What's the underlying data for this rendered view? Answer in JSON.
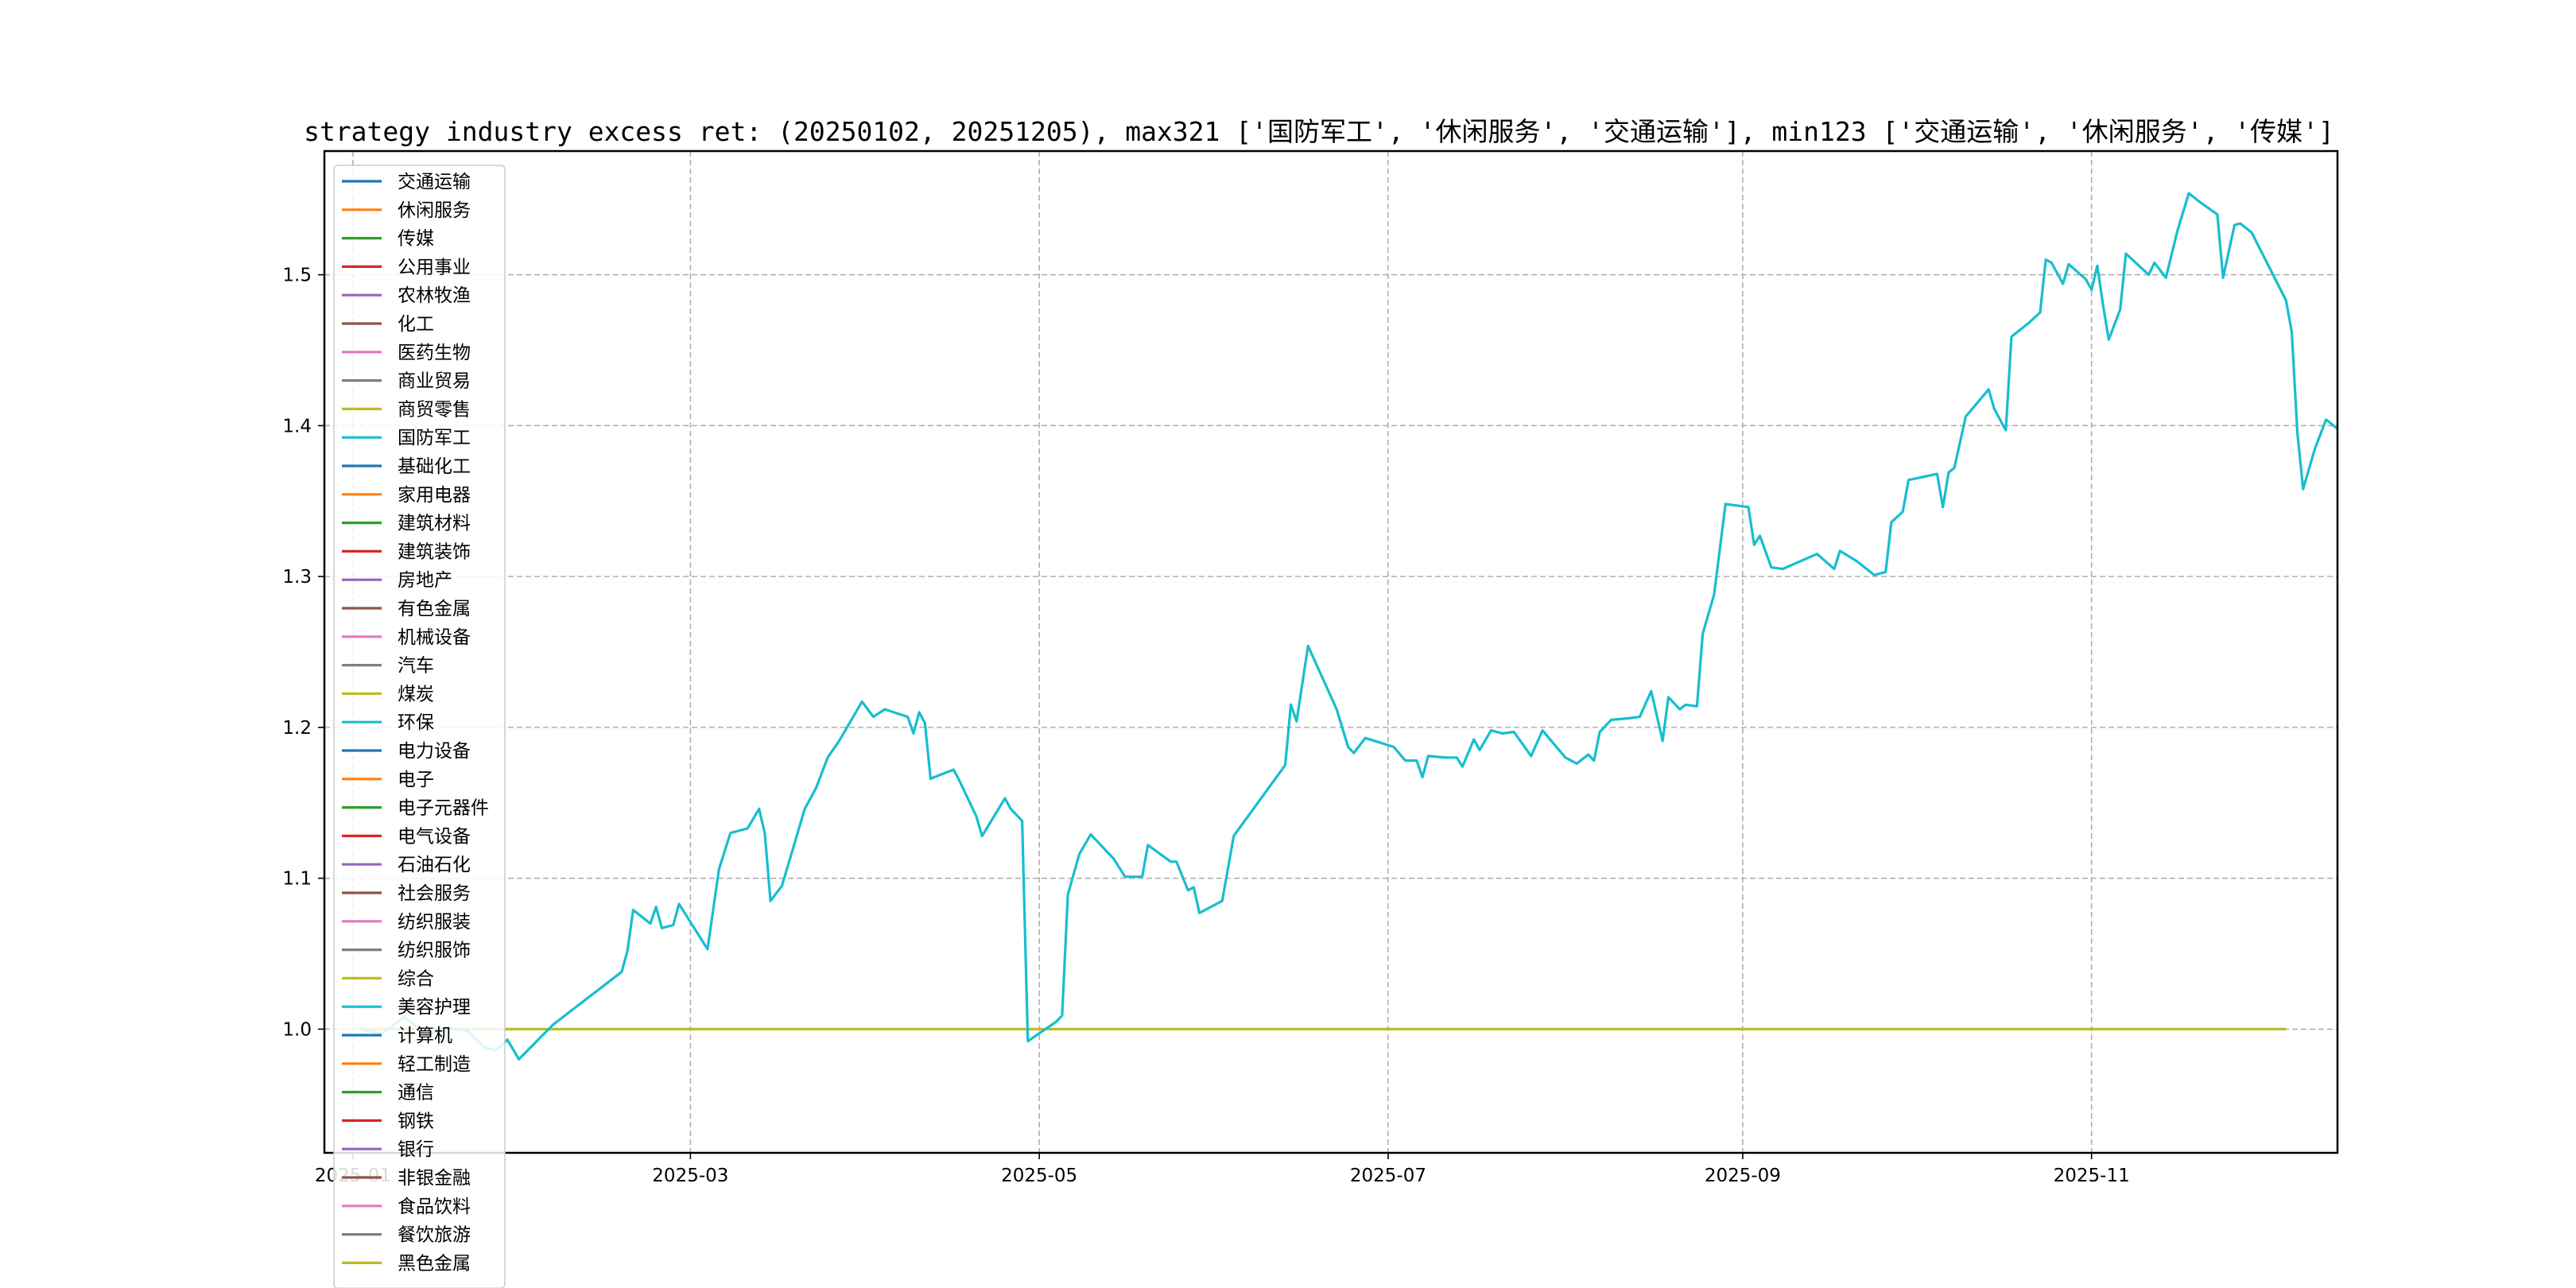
{
  "chart_data": {
    "type": "line",
    "title": "strategy industry excess ret: (20250102, 20251205), max321 ['国防军工', '休闲服务', '交通运输'], min123 ['交通运输', '休闲服务', '传媒']",
    "xlabel": "",
    "ylabel": "",
    "ylim": [
      0.918,
      1.582
    ],
    "xlim": [
      "2024-12-27",
      "2025-12-14"
    ],
    "grid": true,
    "grid_style": "dashed",
    "legend_position": "left",
    "x_ticks": [
      "2025-01",
      "2025-03",
      "2025-05",
      "2025-07",
      "2025-09",
      "2025-11"
    ],
    "y_ticks": [
      1.0,
      1.1,
      1.2,
      1.3,
      1.4,
      1.5
    ],
    "legend_entries": [
      {
        "name": "交通运输",
        "color": "#1f77b4"
      },
      {
        "name": "休闲服务",
        "color": "#ff7f0e"
      },
      {
        "name": "传媒",
        "color": "#2ca02c"
      },
      {
        "name": "公用事业",
        "color": "#d62728"
      },
      {
        "name": "农林牧渔",
        "color": "#9467bd"
      },
      {
        "name": "化工",
        "color": "#8c564b"
      },
      {
        "name": "医药生物",
        "color": "#e377c2"
      },
      {
        "name": "商业贸易",
        "color": "#7f7f7f"
      },
      {
        "name": "商贸零售",
        "color": "#bcbd22"
      },
      {
        "name": "国防军工",
        "color": "#17becf"
      },
      {
        "name": "基础化工",
        "color": "#1f77b4"
      },
      {
        "name": "家用电器",
        "color": "#ff7f0e"
      },
      {
        "name": "建筑材料",
        "color": "#2ca02c"
      },
      {
        "name": "建筑装饰",
        "color": "#d62728"
      },
      {
        "name": "房地产",
        "color": "#9467bd"
      },
      {
        "name": "有色金属",
        "color": "#8c564b"
      },
      {
        "name": "机械设备",
        "color": "#e377c2"
      },
      {
        "name": "汽车",
        "color": "#7f7f7f"
      },
      {
        "name": "煤炭",
        "color": "#bcbd22"
      },
      {
        "name": "环保",
        "color": "#17becf"
      },
      {
        "name": "电力设备",
        "color": "#1f77b4"
      },
      {
        "name": "电子",
        "color": "#ff7f0e"
      },
      {
        "name": "电子元器件",
        "color": "#2ca02c"
      },
      {
        "name": "电气设备",
        "color": "#d62728"
      },
      {
        "name": "石油石化",
        "color": "#9467bd"
      },
      {
        "name": "社会服务",
        "color": "#8c564b"
      },
      {
        "name": "纺织服装",
        "color": "#e377c2"
      },
      {
        "name": "纺织服饰",
        "color": "#7f7f7f"
      },
      {
        "name": "综合",
        "color": "#bcbd22"
      },
      {
        "name": "美容护理",
        "color": "#17becf"
      },
      {
        "name": "计算机",
        "color": "#1f77b4"
      },
      {
        "name": "轻工制造",
        "color": "#ff7f0e"
      },
      {
        "name": "通信",
        "color": "#2ca02c"
      },
      {
        "name": "钢铁",
        "color": "#d62728"
      },
      {
        "name": "银行",
        "color": "#9467bd"
      },
      {
        "name": "非银金融",
        "color": "#8c564b"
      },
      {
        "name": "食品饮料",
        "color": "#e377c2"
      },
      {
        "name": "餐饮旅游",
        "color": "#7f7f7f"
      },
      {
        "name": "黑色金属",
        "color": "#bcbd22"
      }
    ],
    "series": [
      {
        "name": "黑色金属",
        "color": "#bcbd22",
        "points": [
          [
            "2025-01-02",
            1.0
          ],
          [
            "2025-12-05",
            1.0
          ]
        ]
      },
      {
        "name": "国防军工",
        "color": "#17becf",
        "points": [
          [
            "2025-01-02",
            1.0
          ],
          [
            "2025-01-06",
            0.997
          ],
          [
            "2025-01-10",
            1.008
          ],
          [
            "2025-01-14",
            0.996
          ],
          [
            "2025-01-17",
            1.001
          ],
          [
            "2025-01-21",
            0.999
          ],
          [
            "2025-01-24",
            0.988
          ],
          [
            "2025-01-26",
            0.986
          ],
          [
            "2025-01-28",
            0.993
          ],
          [
            "2025-01-30",
            0.98
          ],
          [
            "2025-02-05",
            1.003
          ],
          [
            "2025-02-17",
            1.038
          ],
          [
            "2025-02-18",
            1.052
          ],
          [
            "2025-02-19",
            1.079
          ],
          [
            "2025-02-22",
            1.07
          ],
          [
            "2025-02-23",
            1.081
          ],
          [
            "2025-02-24",
            1.067
          ],
          [
            "2025-02-26",
            1.069
          ],
          [
            "2025-02-27",
            1.083
          ],
          [
            "2025-03-04",
            1.053
          ],
          [
            "2025-03-06",
            1.106
          ],
          [
            "2025-03-08",
            1.13
          ],
          [
            "2025-03-11",
            1.133
          ],
          [
            "2025-03-13",
            1.146
          ],
          [
            "2025-03-14",
            1.13
          ],
          [
            "2025-03-15",
            1.085
          ],
          [
            "2025-03-17",
            1.095
          ],
          [
            "2025-03-21",
            1.146
          ],
          [
            "2025-03-23",
            1.16
          ],
          [
            "2025-03-25",
            1.18
          ],
          [
            "2025-03-27",
            1.191
          ],
          [
            "2025-03-31",
            1.217
          ],
          [
            "2025-04-02",
            1.207
          ],
          [
            "2025-04-04",
            1.212
          ],
          [
            "2025-04-08",
            1.207
          ],
          [
            "2025-04-09",
            1.196
          ],
          [
            "2025-04-10",
            1.21
          ],
          [
            "2025-04-11",
            1.203
          ],
          [
            "2025-04-12",
            1.166
          ],
          [
            "2025-04-16",
            1.172
          ],
          [
            "2025-04-17",
            1.165
          ],
          [
            "2025-04-20",
            1.141
          ],
          [
            "2025-04-21",
            1.128
          ],
          [
            "2025-04-25",
            1.153
          ],
          [
            "2025-04-26",
            1.146
          ],
          [
            "2025-04-28",
            1.138
          ],
          [
            "2025-04-29",
            0.992
          ],
          [
            "2025-05-04",
            1.005
          ],
          [
            "2025-05-05",
            1.009
          ],
          [
            "2025-05-06",
            1.089
          ],
          [
            "2025-05-08",
            1.116
          ],
          [
            "2025-05-10",
            1.129
          ],
          [
            "2025-05-14",
            1.113
          ],
          [
            "2025-05-16",
            1.101
          ],
          [
            "2025-05-19",
            1.101
          ],
          [
            "2025-05-20",
            1.122
          ],
          [
            "2025-05-24",
            1.111
          ],
          [
            "2025-05-25",
            1.111
          ],
          [
            "2025-05-27",
            1.092
          ],
          [
            "2025-05-28",
            1.094
          ],
          [
            "2025-05-29",
            1.077
          ],
          [
            "2025-06-02",
            1.085
          ],
          [
            "2025-06-04",
            1.128
          ],
          [
            "2025-06-13",
            1.175
          ],
          [
            "2025-06-14",
            1.215
          ],
          [
            "2025-06-15",
            1.204
          ],
          [
            "2025-06-17",
            1.254
          ],
          [
            "2025-06-22",
            1.212
          ],
          [
            "2025-06-24",
            1.187
          ],
          [
            "2025-06-25",
            1.183
          ],
          [
            "2025-06-27",
            1.193
          ],
          [
            "2025-07-02",
            1.187
          ],
          [
            "2025-07-04",
            1.178
          ],
          [
            "2025-07-06",
            1.178
          ],
          [
            "2025-07-07",
            1.167
          ],
          [
            "2025-07-08",
            1.181
          ],
          [
            "2025-07-11",
            1.18
          ],
          [
            "2025-07-13",
            1.18
          ],
          [
            "2025-07-14",
            1.174
          ],
          [
            "2025-07-16",
            1.192
          ],
          [
            "2025-07-17",
            1.185
          ],
          [
            "2025-07-19",
            1.198
          ],
          [
            "2025-07-21",
            1.196
          ],
          [
            "2025-07-23",
            1.197
          ],
          [
            "2025-07-26",
            1.181
          ],
          [
            "2025-07-28",
            1.198
          ],
          [
            "2025-08-01",
            1.18
          ],
          [
            "2025-08-03",
            1.176
          ],
          [
            "2025-08-05",
            1.182
          ],
          [
            "2025-08-06",
            1.178
          ],
          [
            "2025-08-07",
            1.197
          ],
          [
            "2025-08-09",
            1.205
          ],
          [
            "2025-08-12",
            1.206
          ],
          [
            "2025-08-14",
            1.207
          ],
          [
            "2025-08-16",
            1.224
          ],
          [
            "2025-08-18",
            1.191
          ],
          [
            "2025-08-19",
            1.22
          ],
          [
            "2025-08-21",
            1.212
          ],
          [
            "2025-08-22",
            1.215
          ],
          [
            "2025-08-24",
            1.214
          ],
          [
            "2025-08-25",
            1.262
          ],
          [
            "2025-08-27",
            1.288
          ],
          [
            "2025-08-29",
            1.348
          ],
          [
            "2025-09-02",
            1.346
          ],
          [
            "2025-09-03",
            1.321
          ],
          [
            "2025-09-04",
            1.327
          ],
          [
            "2025-09-06",
            1.306
          ],
          [
            "2025-09-08",
            1.305
          ],
          [
            "2025-09-14",
            1.315
          ],
          [
            "2025-09-17",
            1.305
          ],
          [
            "2025-09-18",
            1.317
          ],
          [
            "2025-09-21",
            1.31
          ],
          [
            "2025-09-24",
            1.301
          ],
          [
            "2025-09-26",
            1.303
          ],
          [
            "2025-09-27",
            1.336
          ],
          [
            "2025-09-29",
            1.343
          ],
          [
            "2025-09-30",
            1.364
          ],
          [
            "2025-10-05",
            1.368
          ],
          [
            "2025-10-06",
            1.346
          ],
          [
            "2025-10-07",
            1.369
          ],
          [
            "2025-10-08",
            1.372
          ],
          [
            "2025-10-10",
            1.406
          ],
          [
            "2025-10-14",
            1.424
          ],
          [
            "2025-10-15",
            1.411
          ],
          [
            "2025-10-17",
            1.397
          ],
          [
            "2025-10-18",
            1.459
          ],
          [
            "2025-10-21",
            1.468
          ],
          [
            "2025-10-23",
            1.475
          ],
          [
            "2025-10-24",
            1.51
          ],
          [
            "2025-10-25",
            1.508
          ],
          [
            "2025-10-27",
            1.494
          ],
          [
            "2025-10-28",
            1.507
          ],
          [
            "2025-10-31",
            1.497
          ],
          [
            "2025-11-01",
            1.49
          ],
          [
            "2025-11-02",
            1.506
          ],
          [
            "2025-11-03",
            1.48
          ],
          [
            "2025-11-04",
            1.457
          ],
          [
            "2025-11-06",
            1.477
          ],
          [
            "2025-11-07",
            1.514
          ],
          [
            "2025-11-09",
            1.507
          ],
          [
            "2025-11-11",
            1.5
          ],
          [
            "2025-11-12",
            1.508
          ],
          [
            "2025-11-14",
            1.498
          ],
          [
            "2025-11-16",
            1.529
          ],
          [
            "2025-11-18",
            1.554
          ],
          [
            "2025-11-20",
            1.548
          ],
          [
            "2025-11-23",
            1.54
          ],
          [
            "2025-11-24",
            1.498
          ],
          [
            "2025-11-26",
            1.533
          ],
          [
            "2025-11-27",
            1.534
          ],
          [
            "2025-11-29",
            1.528
          ],
          [
            "2025-12-05",
            1.483
          ],
          [
            "2025-12-06",
            1.462
          ],
          [
            "2025-12-07",
            1.395
          ],
          [
            "2025-12-08",
            1.358
          ],
          [
            "2025-12-10",
            1.384
          ],
          [
            "2025-12-12",
            1.404
          ],
          [
            "2025-12-14",
            1.398
          ]
        ]
      }
    ]
  }
}
